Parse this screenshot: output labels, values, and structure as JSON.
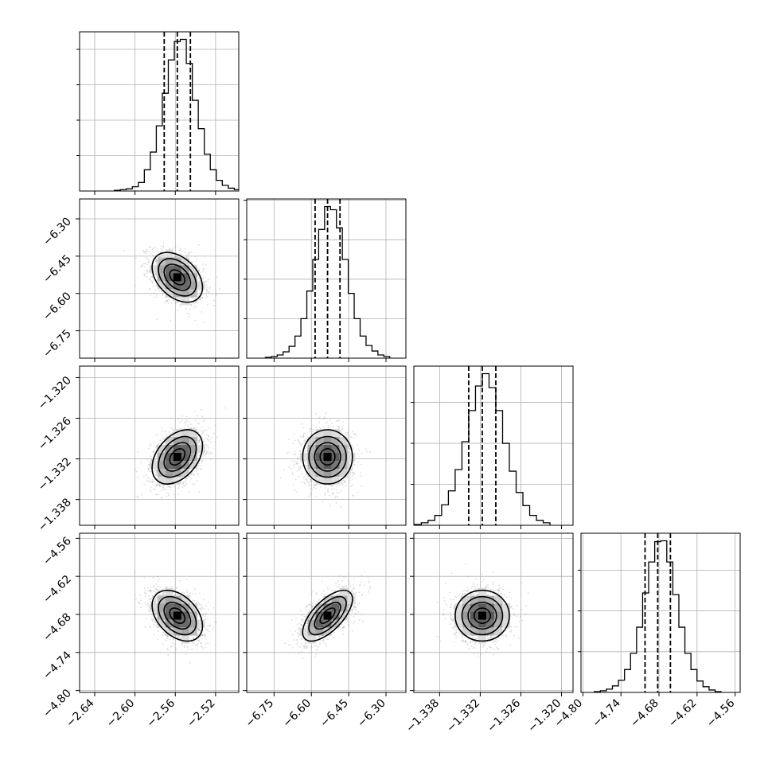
{
  "chart_data": {
    "type": "corner",
    "parameters": [
      {
        "ticks": [
          "−2.64",
          "−2.60",
          "−2.56",
          "−2.52"
        ],
        "tick_values": [
          -2.64,
          -2.6,
          -2.56,
          -2.52
        ],
        "range": [
          -2.655,
          -2.497
        ],
        "median": -2.558,
        "q16": -2.571,
        "q84": -2.545,
        "sigma": 0.0125,
        "hist_counts": [
          1,
          2,
          3,
          6,
          12,
          30,
          55,
          92,
          138,
          185,
          211,
          214,
          180,
          128,
          88,
          52,
          30,
          15,
          8,
          4,
          2
        ]
      },
      {
        "ticks": [
          "−6.75",
          "−6.60",
          "−6.45",
          "−6.30"
        ],
        "tick_values": [
          -6.75,
          -6.6,
          -6.45,
          -6.3
        ],
        "range": [
          -6.86,
          -6.22
        ],
        "median": -6.535,
        "q16": -6.585,
        "q84": -6.485,
        "sigma": 0.05,
        "hist_counts": [
          1,
          2,
          4,
          8,
          15,
          28,
          50,
          85,
          125,
          163,
          192,
          188,
          165,
          125,
          82,
          50,
          28,
          16,
          9,
          4,
          2
        ]
      },
      {
        "ticks": [
          "−1.338",
          "−1.332",
          "−1.326",
          "−1.320"
        ],
        "tick_values": [
          -1.338,
          -1.332,
          -1.326,
          -1.32
        ],
        "range": [
          -1.3418,
          -1.3183
        ],
        "median": -1.3317,
        "q16": -1.3337,
        "q84": -1.3297,
        "sigma": 0.002,
        "hist_counts": [
          1,
          3,
          6,
          12,
          25,
          42,
          68,
          102,
          140,
          170,
          185,
          168,
          140,
          100,
          66,
          40,
          24,
          12,
          6,
          3
        ]
      },
      {
        "ticks": [
          "−4.80",
          "−4.74",
          "−4.68",
          "−4.62",
          "−4.56"
        ],
        "tick_values": [
          -4.8,
          -4.74,
          -4.68,
          -4.62,
          -4.56
        ],
        "range": [
          -4.803,
          -4.552
        ],
        "median": -4.682,
        "q16": -4.702,
        "q84": -4.662,
        "sigma": 0.02,
        "hist_counts": [
          1,
          2,
          4,
          8,
          15,
          28,
          48,
          80,
          122,
          160,
          185,
          186,
          160,
          120,
          80,
          48,
          28,
          14,
          7,
          3,
          1
        ]
      }
    ],
    "correlations": [
      [
        1.0,
        -0.4,
        0.4,
        -0.4
      ],
      [
        -0.4,
        1.0,
        0.0,
        0.65
      ],
      [
        0.4,
        0.0,
        1.0,
        0.0
      ],
      [
        -0.4,
        0.65,
        0.0,
        1.0
      ]
    ],
    "quantiles": [
      0.16,
      0.5,
      0.84
    ],
    "grid": true
  }
}
